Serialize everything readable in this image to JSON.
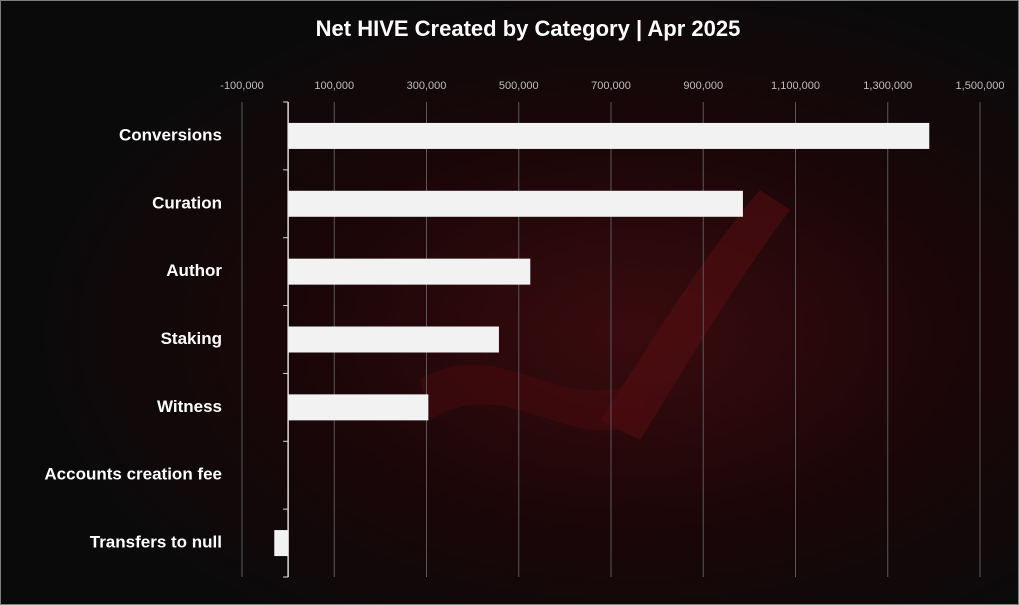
{
  "chart_data": {
    "type": "bar",
    "orientation": "horizontal",
    "title": "Net HIVE Created by Category | Apr 2025",
    "categories": [
      "Conversions",
      "Curation",
      "Author",
      "Staking",
      "Witness",
      "Accounts creation fee",
      "Transfers to null"
    ],
    "values": [
      1390000,
      986000,
      525000,
      457000,
      304000,
      0,
      -30000
    ],
    "color": "#f2f2f2",
    "xlim": [
      -100000,
      1500000
    ],
    "xticks": [
      {
        "value": -100000,
        "label": "-100,000"
      },
      {
        "value": 100000,
        "label": "100,000"
      },
      {
        "value": 300000,
        "label": "300,000"
      },
      {
        "value": 500000,
        "label": "500,000"
      },
      {
        "value": 700000,
        "label": "700,000"
      },
      {
        "value": 900000,
        "label": "900,000"
      },
      {
        "value": 1100000,
        "label": "1,100,000"
      },
      {
        "value": 1300000,
        "label": "1,300,000"
      },
      {
        "value": 1500000,
        "label": "1,500,000"
      }
    ],
    "grid": true
  }
}
